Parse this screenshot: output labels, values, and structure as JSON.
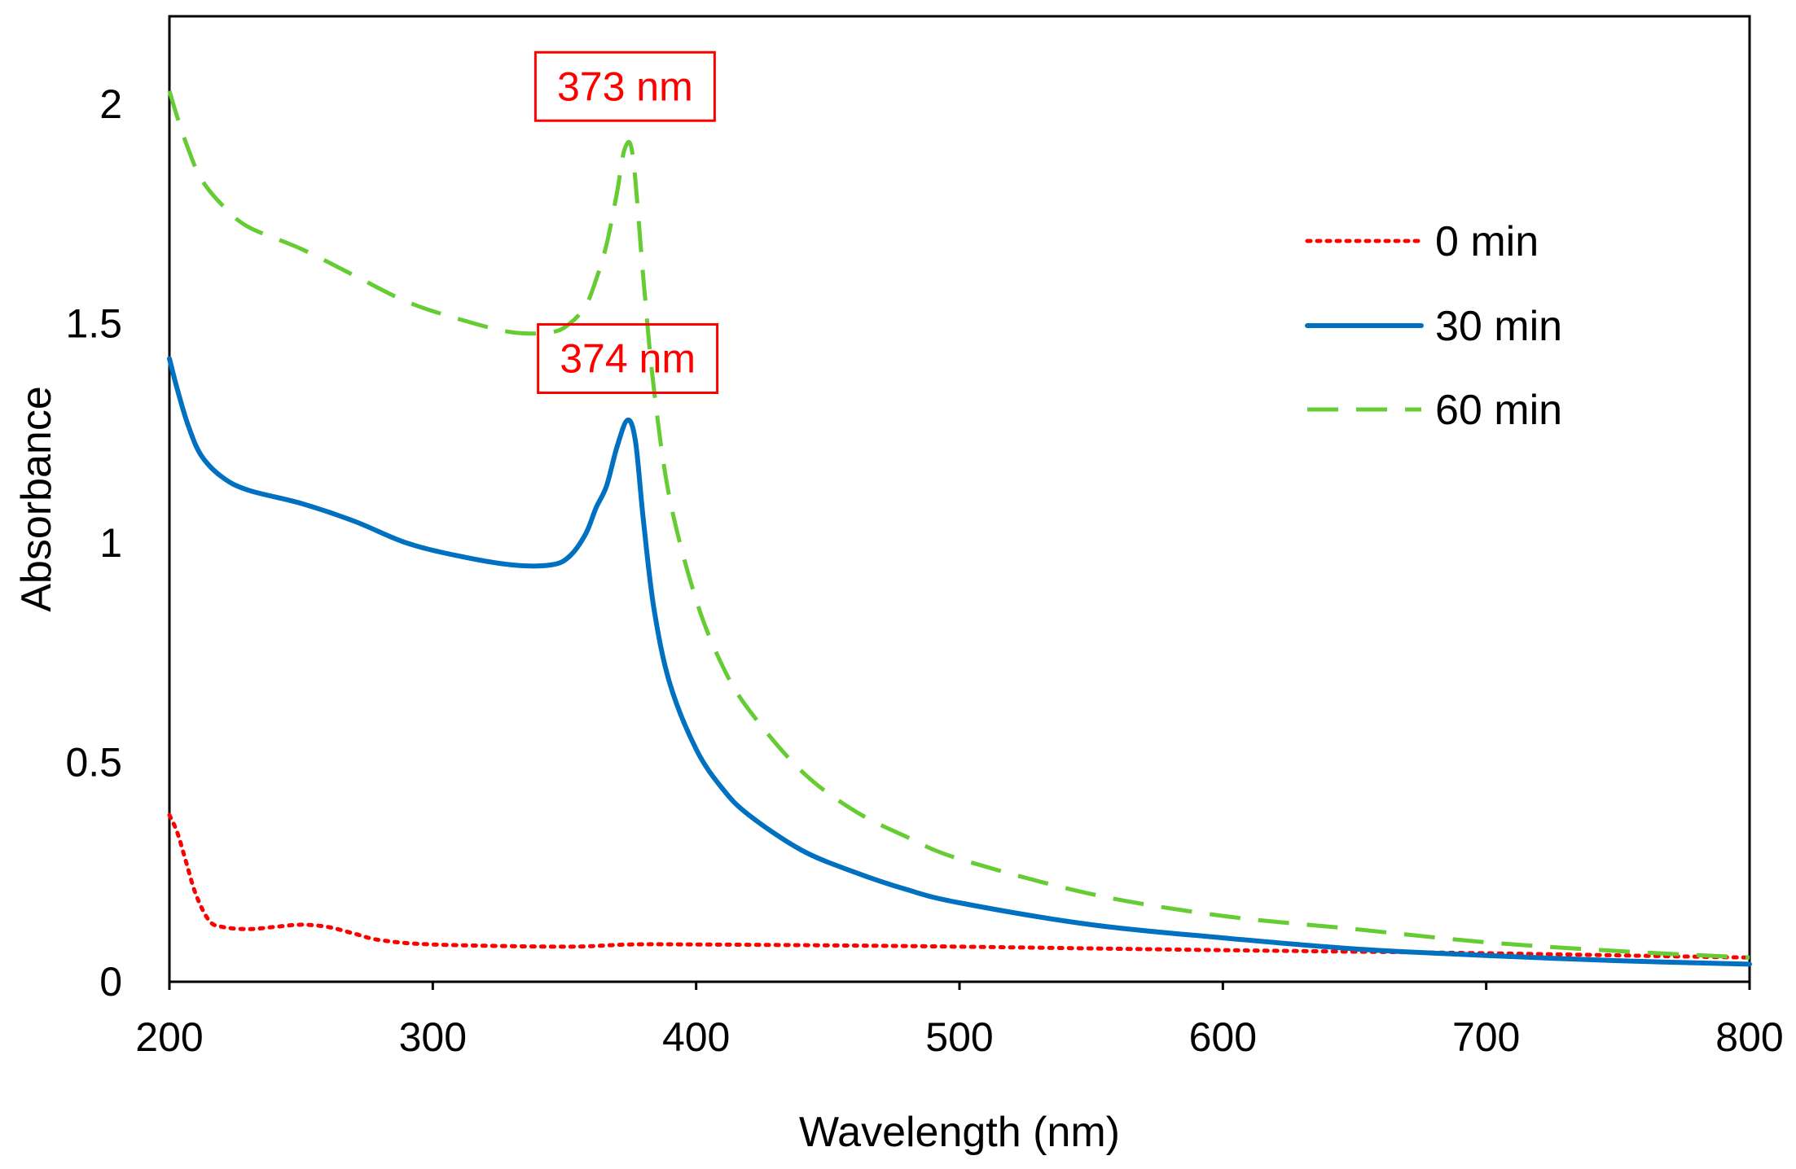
{
  "chart_data": {
    "type": "line",
    "title": "",
    "xlabel": "Wavelength (nm)",
    "ylabel": "Absorbance",
    "xlim": [
      200,
      800
    ],
    "ylim": [
      0,
      2.2
    ],
    "xticks": [
      200,
      300,
      400,
      500,
      600,
      700,
      800
    ],
    "yticks": [
      0,
      0.5,
      1,
      1.5,
      2
    ],
    "xtick_labels": [
      "200",
      "300",
      "400",
      "500",
      "600",
      "700",
      "800"
    ],
    "ytick_labels": [
      "0",
      "0.5",
      "1",
      "1.5",
      "2"
    ],
    "grid": false,
    "legend_position": "right-upper",
    "series": [
      {
        "name": "0 min",
        "style": "dotted",
        "color": "#ff0000",
        "points": [
          [
            200,
            0.38
          ],
          [
            203,
            0.34
          ],
          [
            206,
            0.28
          ],
          [
            210,
            0.2
          ],
          [
            215,
            0.14
          ],
          [
            220,
            0.125
          ],
          [
            230,
            0.12
          ],
          [
            240,
            0.125
          ],
          [
            250,
            0.13
          ],
          [
            260,
            0.125
          ],
          [
            270,
            0.11
          ],
          [
            280,
            0.095
          ],
          [
            300,
            0.085
          ],
          [
            350,
            0.08
          ],
          [
            375,
            0.085
          ],
          [
            400,
            0.085
          ],
          [
            450,
            0.083
          ],
          [
            500,
            0.08
          ],
          [
            600,
            0.072
          ],
          [
            700,
            0.065
          ],
          [
            800,
            0.055
          ]
        ]
      },
      {
        "name": "30 min",
        "style": "solid",
        "color": "#0070c0",
        "points": [
          [
            200,
            1.42
          ],
          [
            203,
            1.35
          ],
          [
            207,
            1.27
          ],
          [
            212,
            1.2
          ],
          [
            220,
            1.15
          ],
          [
            230,
            1.12
          ],
          [
            250,
            1.09
          ],
          [
            270,
            1.05
          ],
          [
            290,
            1.0
          ],
          [
            310,
            0.97
          ],
          [
            330,
            0.95
          ],
          [
            345,
            0.95
          ],
          [
            352,
            0.97
          ],
          [
            358,
            1.02
          ],
          [
            362,
            1.08
          ],
          [
            366,
            1.13
          ],
          [
            370,
            1.22
          ],
          [
            374,
            1.28
          ],
          [
            377,
            1.23
          ],
          [
            380,
            1.05
          ],
          [
            384,
            0.85
          ],
          [
            390,
            0.68
          ],
          [
            400,
            0.53
          ],
          [
            410,
            0.44
          ],
          [
            420,
            0.38
          ],
          [
            440,
            0.3
          ],
          [
            460,
            0.25
          ],
          [
            480,
            0.21
          ],
          [
            500,
            0.18
          ],
          [
            550,
            0.13
          ],
          [
            600,
            0.1
          ],
          [
            650,
            0.075
          ],
          [
            700,
            0.06
          ],
          [
            750,
            0.048
          ],
          [
            800,
            0.04
          ]
        ]
      },
      {
        "name": "60 min",
        "style": "dashed",
        "color": "#66cc33",
        "points": [
          [
            200,
            2.03
          ],
          [
            203,
            1.97
          ],
          [
            207,
            1.9
          ],
          [
            212,
            1.83
          ],
          [
            220,
            1.77
          ],
          [
            230,
            1.72
          ],
          [
            250,
            1.67
          ],
          [
            270,
            1.61
          ],
          [
            290,
            1.55
          ],
          [
            310,
            1.51
          ],
          [
            330,
            1.48
          ],
          [
            345,
            1.48
          ],
          [
            352,
            1.5
          ],
          [
            358,
            1.54
          ],
          [
            362,
            1.6
          ],
          [
            366,
            1.68
          ],
          [
            370,
            1.8
          ],
          [
            373,
            1.9
          ],
          [
            376,
            1.88
          ],
          [
            380,
            1.6
          ],
          [
            384,
            1.35
          ],
          [
            390,
            1.1
          ],
          [
            400,
            0.87
          ],
          [
            410,
            0.72
          ],
          [
            420,
            0.62
          ],
          [
            440,
            0.48
          ],
          [
            460,
            0.39
          ],
          [
            480,
            0.33
          ],
          [
            500,
            0.28
          ],
          [
            550,
            0.2
          ],
          [
            600,
            0.15
          ],
          [
            650,
            0.12
          ],
          [
            700,
            0.09
          ],
          [
            750,
            0.07
          ],
          [
            800,
            0.055
          ]
        ]
      }
    ],
    "annotations": [
      {
        "text": "373 nm",
        "x": 373,
        "y": 2.04,
        "color": "#ff0000"
      },
      {
        "text": "374 nm",
        "x": 374,
        "y": 1.42,
        "color": "#ff0000"
      }
    ]
  }
}
